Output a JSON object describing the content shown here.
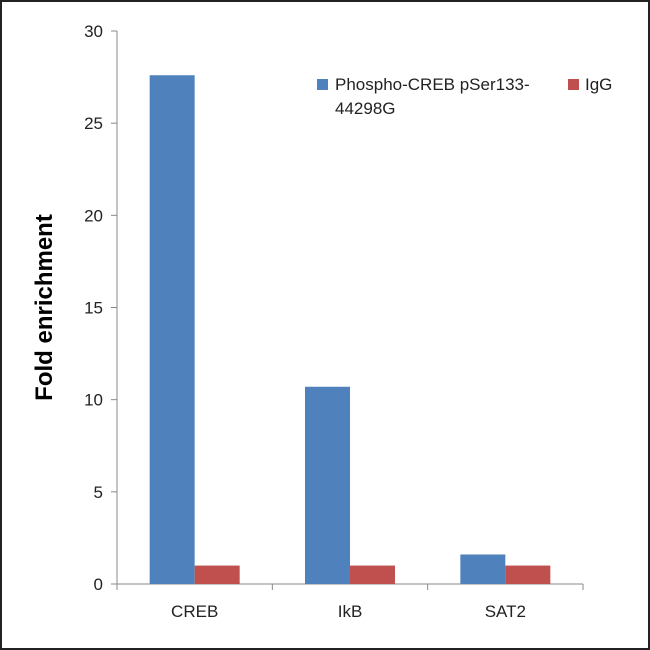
{
  "chart_data": {
    "type": "bar",
    "title": "",
    "xlabel": "",
    "ylabel": "Fold enrichment",
    "ylim": [
      0,
      30
    ],
    "yticks": [
      0,
      5,
      10,
      15,
      20,
      25,
      30
    ],
    "categories": [
      "CREB",
      "IkB",
      "SAT2"
    ],
    "series": [
      {
        "name": "Phospho-CREB pSer133-44298G",
        "color": "#4f81bd",
        "values": [
          27.6,
          10.7,
          1.6
        ]
      },
      {
        "name": "IgG",
        "color": "#c0504d",
        "values": [
          1.0,
          1.0,
          1.0
        ]
      }
    ],
    "legend": {
      "placement": "top-right",
      "entries": [
        {
          "line1": "Phospho-CREB pSer133-",
          "line2": "44298G"
        },
        {
          "line1": "IgG"
        }
      ]
    },
    "grid": false
  }
}
